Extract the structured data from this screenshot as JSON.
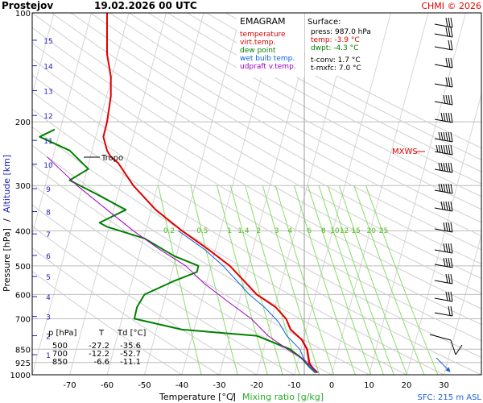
{
  "header": {
    "station": "Prostejov",
    "datetime": "19.02.2026 00 UTC",
    "credit": "CHMI © 2026"
  },
  "legend": {
    "title": "EMAGRAM",
    "items": [
      {
        "label": "temperature",
        "color": "#e00000"
      },
      {
        "label": "virt.temp.",
        "color": "#e00000"
      },
      {
        "label": "dew point",
        "color": "#008000"
      },
      {
        "label": "wet bulb temp.",
        "color": "#1060e0"
      },
      {
        "label": "udpraft v.temp.",
        "color": "#a000c0"
      }
    ]
  },
  "surface": {
    "title": "Surface:",
    "press": "press: 987.0 hPa",
    "temp": "temp: -3.9 °C",
    "dwpt": "dwpt: -4.3 °C",
    "tconv": "t-conv: 1.7 °C",
    "tmxfc": "t-mxfc: 7.0 °C"
  },
  "levels_table": {
    "headers": [
      "p [hPa]",
      "T",
      "Td [°C]"
    ],
    "rows": [
      [
        "500",
        "-27.2",
        "-35.6"
      ],
      [
        "700",
        "-12.2",
        "-52.7"
      ],
      [
        "850",
        "-6.6",
        "-11.1"
      ]
    ]
  },
  "annotations": {
    "tropo": "Tropo",
    "mxws": "MXWS",
    "sfc": "SFC: 215 m ASL"
  },
  "axes": {
    "xlabel_temp": "Temperature [°C]",
    "xlabel_sep": "/",
    "xlabel_mix": "Mixing ratio [g/kg]",
    "ylabel_pres": "Pressure [hPa]",
    "ylabel_sep": "/",
    "ylabel_alt": "Altitude [km]"
  },
  "colors": {
    "temperature": "#e00000",
    "dewpoint": "#008000",
    "wetbulb": "#1060e0",
    "parcel": "#a000c0",
    "mixing": "#88dd66",
    "altitude": "#2020c0"
  },
  "chart_data": {
    "type": "line",
    "y_scale": "log",
    "xlim": [
      -80,
      40
    ],
    "ylim": [
      1000,
      100
    ],
    "x_ticks": [
      -70,
      -60,
      -50,
      -40,
      -30,
      -20,
      -10,
      0,
      10,
      20,
      30
    ],
    "p_ticks": [
      100,
      200,
      300,
      400,
      500,
      600,
      700,
      850,
      925,
      1000
    ],
    "alt_ticks": [
      1,
      2,
      3,
      4,
      5,
      6,
      7,
      8,
      9,
      10,
      11,
      12,
      13,
      14,
      15
    ],
    "mixing_ratio_labels": [
      "0.2",
      "0.5",
      "1",
      "1.4",
      "2",
      "3",
      "4",
      "6",
      "8",
      "10",
      "12",
      "15",
      "20",
      "25"
    ],
    "series": [
      {
        "name": "temperature",
        "color": "#e00000",
        "points": [
          [
            -3.9,
            987
          ],
          [
            -5,
            960
          ],
          [
            -6,
            930
          ],
          [
            -6.6,
            850
          ],
          [
            -8,
            800
          ],
          [
            -11,
            750
          ],
          [
            -12.2,
            700
          ],
          [
            -15,
            650
          ],
          [
            -20,
            600
          ],
          [
            -27.2,
            500
          ],
          [
            -33,
            450
          ],
          [
            -40,
            400
          ],
          [
            -47,
            350
          ],
          [
            -53,
            300
          ],
          [
            -57,
            260
          ],
          [
            -59,
            250
          ],
          [
            -60,
            240
          ],
          [
            -61,
            220
          ],
          [
            -60,
            200
          ],
          [
            -59,
            170
          ],
          [
            -59,
            150
          ],
          [
            -60,
            130
          ],
          [
            -60,
            110
          ],
          [
            -60,
            100
          ]
        ]
      },
      {
        "name": "virt.temp.",
        "color": "#e00000",
        "points": [
          [
            -3.6,
            987
          ],
          [
            -4.8,
            960
          ],
          [
            -5.8,
            930
          ],
          [
            -6.4,
            850
          ],
          [
            -7.8,
            800
          ],
          [
            -10.8,
            750
          ],
          [
            -12.1,
            700
          ],
          [
            -14.9,
            650
          ],
          [
            -19.9,
            600
          ],
          [
            -27.1,
            500
          ],
          [
            -33,
            450
          ],
          [
            -40,
            400
          ]
        ]
      },
      {
        "name": "dew point",
        "color": "#008000",
        "points": [
          [
            -4.3,
            987
          ],
          [
            -6,
            950
          ],
          [
            -8,
            900
          ],
          [
            -11.1,
            850
          ],
          [
            -20,
            780
          ],
          [
            -40,
            750
          ],
          [
            -52.7,
            700
          ],
          [
            -52,
            650
          ],
          [
            -50,
            600
          ],
          [
            -42,
            550
          ],
          [
            -36,
            520
          ],
          [
            -35.6,
            500
          ],
          [
            -42,
            470
          ],
          [
            -50,
            420
          ],
          [
            -60,
            390
          ],
          [
            -62,
            380
          ],
          [
            -55,
            350
          ],
          [
            -62,
            320
          ],
          [
            -70,
            290
          ],
          [
            -65,
            270
          ],
          [
            -70,
            240
          ],
          [
            -78,
            220
          ],
          [
            -74,
            210
          ]
        ]
      },
      {
        "name": "wet bulb temp.",
        "color": "#1060e0",
        "points": [
          [
            -4.1,
            987
          ],
          [
            -6,
            950
          ],
          [
            -7.5,
            900
          ],
          [
            -8.5,
            850
          ],
          [
            -12,
            780
          ],
          [
            -14,
            720
          ],
          [
            -15,
            700
          ],
          [
            -18,
            650
          ],
          [
            -22,
            600
          ],
          [
            -29,
            500
          ],
          [
            -34,
            450
          ],
          [
            -41,
            400
          ]
        ]
      },
      {
        "name": "udpraft v.temp.",
        "color": "#a000c0",
        "points": [
          [
            -3.6,
            987
          ],
          [
            -8,
            900
          ],
          [
            -11.8,
            850
          ],
          [
            -17,
            780
          ],
          [
            -21.5,
            700
          ],
          [
            -27.5,
            630
          ],
          [
            -34,
            560
          ],
          [
            -39,
            500
          ],
          [
            -46,
            450
          ],
          [
            -53,
            400
          ],
          [
            -60,
            350
          ],
          [
            -68,
            300
          ],
          [
            -76,
            250
          ]
        ]
      }
    ]
  }
}
